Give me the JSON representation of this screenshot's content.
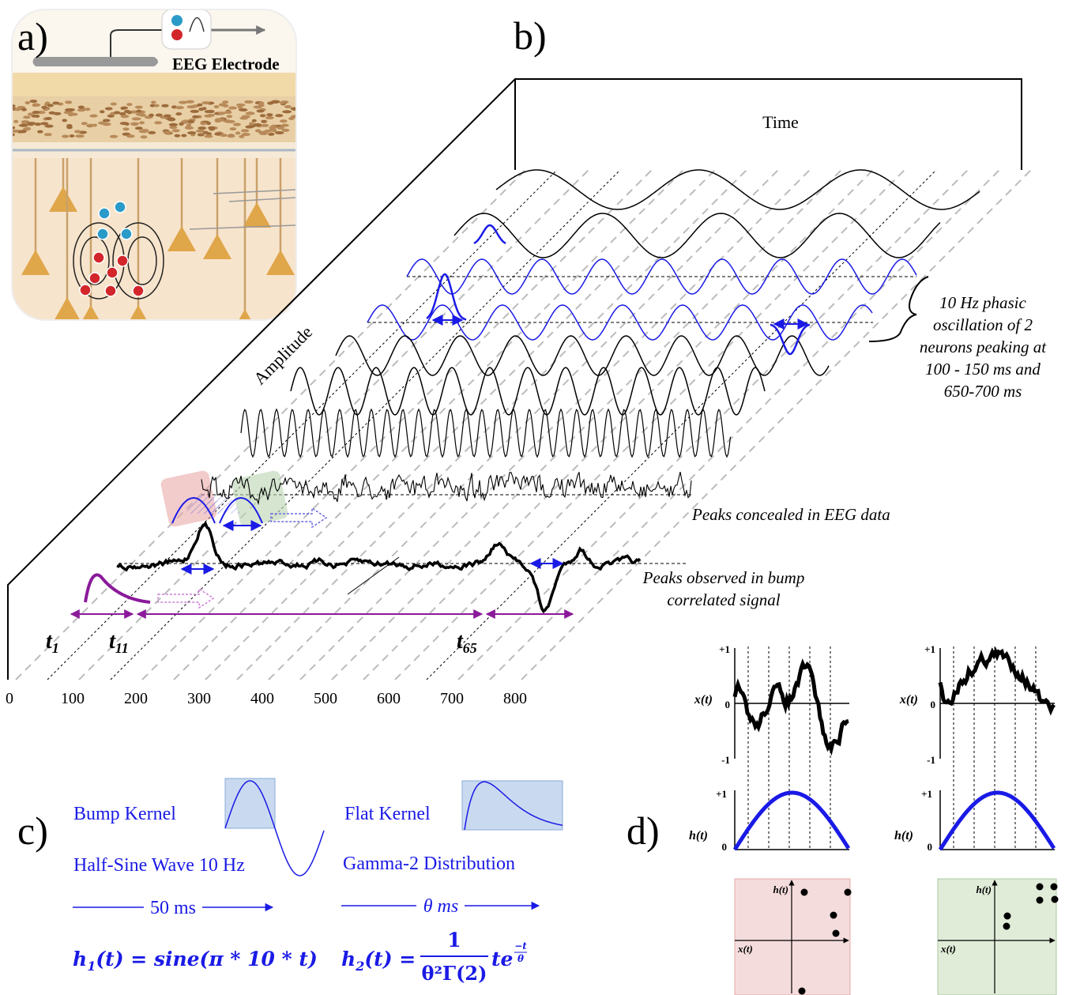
{
  "panel_a": {
    "label": "a)",
    "electrode_label": "EEG Electrode"
  },
  "panel_b": {
    "label": "b)",
    "time_label": "Time",
    "amplitude_label": "Amplitude",
    "time_ticks": [
      0,
      100,
      200,
      300,
      400,
      500,
      600,
      700,
      800
    ],
    "oscillation_note": [
      "10 Hz phasic",
      "oscillation of 2",
      "neurons peaking at",
      "100 - 150 ms and",
      "650-700 ms"
    ],
    "concealed_note": "Peaks concealed in EEG data",
    "observed_note": [
      "Peaks observed in bump",
      "correlated signal"
    ],
    "time_markers": [
      {
        "t": "t",
        "sub": "1"
      },
      {
        "t": "t",
        "sub": "11"
      },
      {
        "t": "t",
        "sub": "65"
      }
    ]
  },
  "panel_c": {
    "label": "c)",
    "bump_kernel": "Bump Kernel",
    "bump_desc": "Half-Sine Wave 10 Hz",
    "bump_width": "50 ms",
    "flat_kernel": "Flat Kernel",
    "flat_desc": "Gamma-2 Distribution",
    "flat_width": "θ ms",
    "formula1": {
      "h": "h",
      "sub": "1",
      "rhs": "(t) = sine(π * 10 * t)"
    },
    "formula2": {
      "h": "h",
      "sub": "2",
      "eq": "(t) =",
      "numerator": "1",
      "denominator": "θ²Γ(2)",
      "rest": "te",
      "exp_num": "−t",
      "exp_den": "θ"
    }
  },
  "panel_d": {
    "label": "d)",
    "plots": [
      {
        "x_label": "x(t)",
        "x_ticks": [
          "+1",
          "0",
          "-1"
        ],
        "h_label": "h(t)",
        "h_ticks": [
          "+1",
          "0"
        ],
        "scatter_y_label": "h(t)",
        "scatter_x_label": "x(t)"
      },
      {
        "x_label": "x(t)",
        "x_ticks": [
          "+1",
          "0",
          "-1"
        ],
        "h_label": "h(t)",
        "h_ticks": [
          "+1",
          "0"
        ],
        "scatter_y_label": "h(t)",
        "scatter_x_label": "x(t)"
      }
    ]
  }
}
